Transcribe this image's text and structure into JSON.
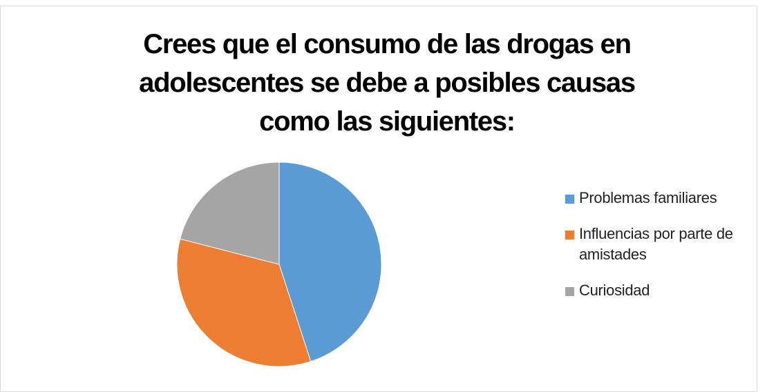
{
  "chart_data": {
    "type": "pie",
    "title": "Crees que el consumo de las drogas en\nadolescentes se debe a posibles causas\ncomo las siguientes:",
    "categories": [
      "Problemas familiares",
      "Influencias por parte de amistades",
      "Curiosidad"
    ],
    "values": [
      45,
      34,
      21
    ],
    "colors": [
      "#5b9bd5",
      "#ed7d31",
      "#a5a5a5"
    ],
    "legend": "right"
  }
}
